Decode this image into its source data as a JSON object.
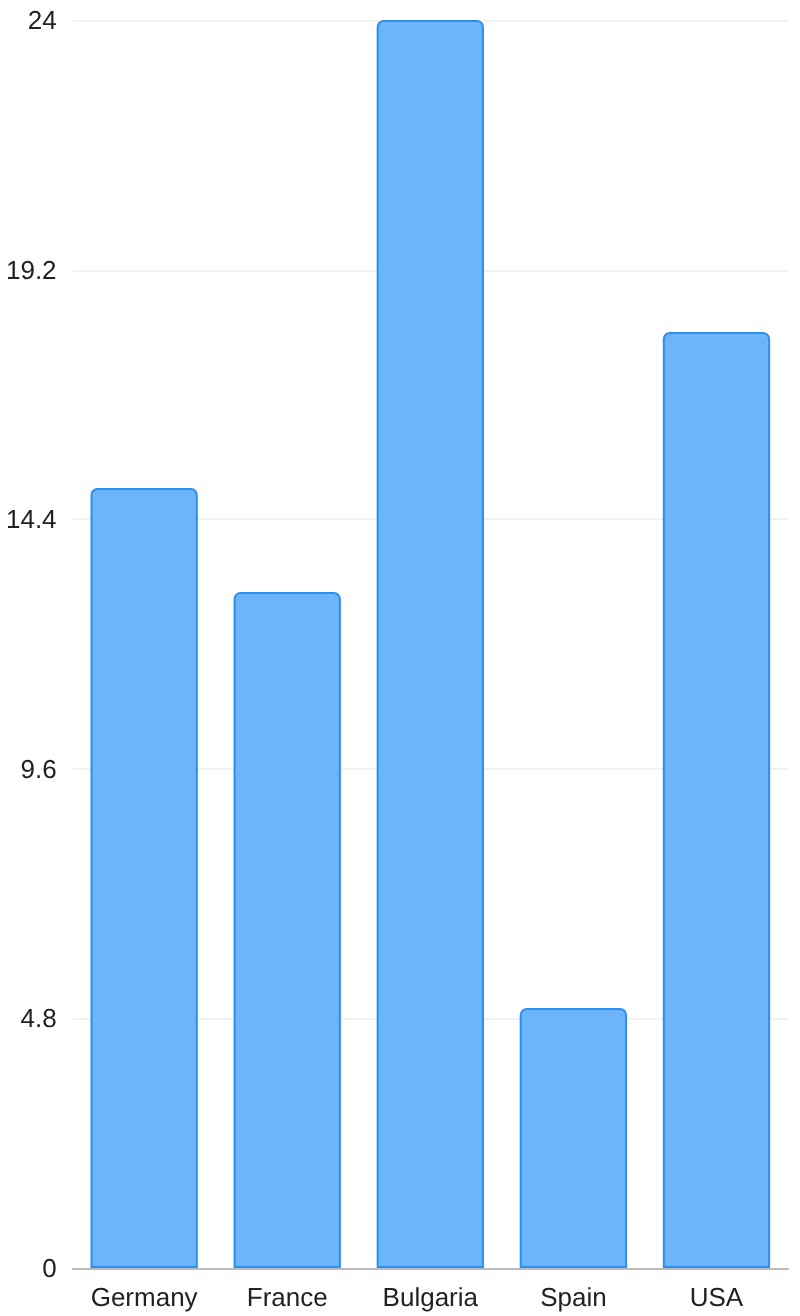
{
  "chart_data": {
    "type": "bar",
    "categories": [
      "Germany",
      "France",
      "Bulgaria",
      "Spain",
      "USA"
    ],
    "values": [
      15,
      13,
      24,
      5,
      18
    ],
    "color": "#6cb5fb",
    "ylim": [
      0,
      24
    ],
    "yticks": [
      0,
      4.8,
      9.6,
      14.4,
      19.2,
      24
    ],
    "grid": "y"
  }
}
